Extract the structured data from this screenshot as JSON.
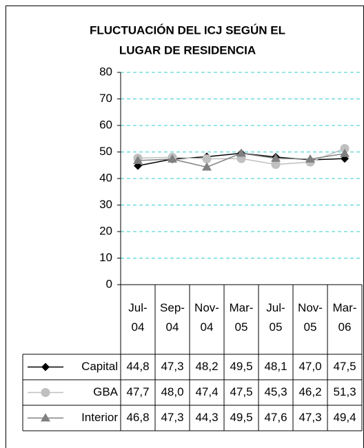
{
  "chart_data": {
    "type": "line",
    "title": [
      "FLUCTUACIÓN DEL ICJ SEGÚN EL",
      "LUGAR DE RESIDENCIA"
    ],
    "categories": [
      "Jul-04",
      "Sep-04",
      "Nov-04",
      "Mar-05",
      "Jul-05",
      "Nov-05",
      "Mar-06"
    ],
    "series": [
      {
        "name": "Capital",
        "color": "#000000",
        "marker": "diamond",
        "values": [
          44.8,
          47.3,
          48.2,
          49.5,
          48.1,
          47.0,
          47.5
        ],
        "value_labels": [
          "44,8",
          "47,3",
          "48,2",
          "49,5",
          "48,1",
          "47,0",
          "47,5"
        ]
      },
      {
        "name": "GBA",
        "color": "#c0c0c0",
        "marker": "circle",
        "values": [
          47.7,
          48.0,
          47.4,
          47.5,
          45.3,
          46.2,
          51.3
        ],
        "value_labels": [
          "47,7",
          "48,0",
          "47,4",
          "47,5",
          "45,3",
          "46,2",
          "51,3"
        ]
      },
      {
        "name": "Interior",
        "color": "#808080",
        "marker": "triangle",
        "values": [
          46.8,
          47.3,
          44.3,
          49.5,
          47.6,
          47.3,
          49.4
        ],
        "value_labels": [
          "46,8",
          "47,3",
          "44,3",
          "49,5",
          "47,6",
          "47,3",
          "49,4"
        ]
      }
    ],
    "ylim": [
      0,
      80
    ],
    "yticks": [
      0,
      10,
      20,
      30,
      40,
      50,
      60,
      70,
      80
    ],
    "grid": true,
    "grid_color": "#33cccc"
  }
}
